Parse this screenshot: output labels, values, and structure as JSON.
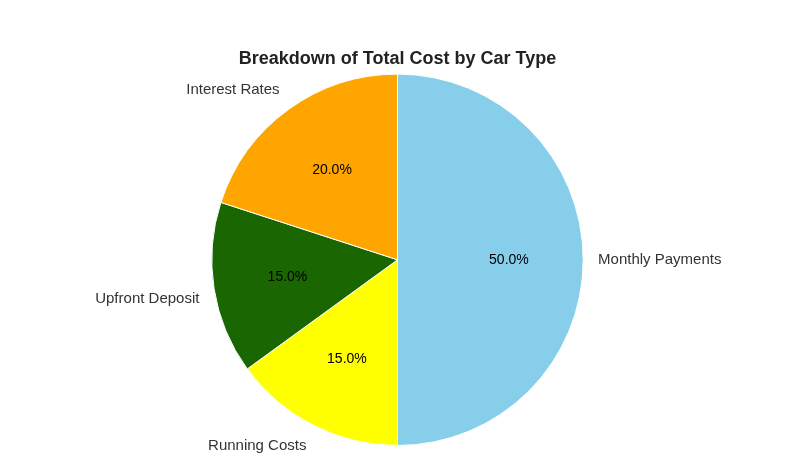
{
  "chart_data": {
    "type": "pie",
    "title": "Breakdown of Total Cost by Car Type",
    "categories": [
      "Monthly Payments",
      "Running Costs",
      "Upfront Deposit",
      "Interest Rates"
    ],
    "values": [
      50.0,
      15.0,
      15.0,
      20.0
    ],
    "value_labels": [
      "50.0%",
      "15.0%",
      "15.0%",
      "20.0%"
    ],
    "colors": [
      "#87CEEB",
      "#FFFF00",
      "#1a6600",
      "#FFA500"
    ],
    "data_labels": true
  }
}
